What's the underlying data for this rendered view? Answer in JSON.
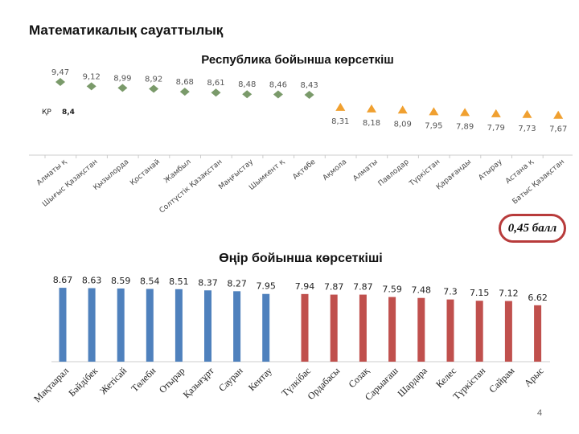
{
  "title": "Математикалық сауаттылық",
  "badge": "0,45 балл",
  "page_number": "4",
  "chart_data": [
    {
      "type": "scatter",
      "title": "Республика бойынша көрсеткіш",
      "categories": [
        "Алматы қ",
        "Шығыс Қазақстан",
        "Қызылорда",
        "Қостанай",
        "Жамбыл",
        "Солтүстік Қазақстан",
        "Маңғыстау",
        "Шымкент қ",
        "Ақтөбе",
        "Ақмола",
        "Алматы",
        "Павлодар",
        "Түркістан",
        "Қарағанды",
        "Атырау",
        "Астана қ",
        "Батыс Қазақстан"
      ],
      "values": [
        9.47,
        9.12,
        8.99,
        8.92,
        8.68,
        8.61,
        8.48,
        8.46,
        8.43,
        8.31,
        8.18,
        8.09,
        7.95,
        7.89,
        7.79,
        7.73,
        7.67
      ],
      "labels": [
        "9,47",
        "9,12",
        "8,99",
        "8,92",
        "8,68",
        "8,61",
        "8,48",
        "8,46",
        "8,43",
        "8,31",
        "8,18",
        "8,09",
        "7,95",
        "7,89",
        "7,79",
        "7,73",
        "7,67"
      ],
      "above_color": "#7a9a6a",
      "below_color": "#f0a030",
      "reference": {
        "label": "ҚР",
        "value": "8,4"
      }
    },
    {
      "type": "bar",
      "title": "Өңір бойынша көрсеткіші",
      "categories": [
        "Мақтаарал",
        "Бәйдібек",
        "Жетісай",
        "Төлеби",
        "Отырар",
        "Қазығұрт",
        "Сауран",
        "Кентау",
        "Түлкібас",
        "Ордабасы",
        "Созақ",
        "Сарыағаш",
        "Шардара",
        "Келес",
        "Түркістан",
        "Сайрам",
        "Арыс"
      ],
      "values": [
        8.67,
        8.63,
        8.59,
        8.54,
        8.51,
        8.37,
        8.27,
        7.95,
        7.94,
        7.87,
        7.87,
        7.59,
        7.48,
        7.3,
        7.15,
        7.12,
        6.62
      ],
      "above_color": "#4f81bd",
      "below_color": "#c0504d"
    }
  ]
}
